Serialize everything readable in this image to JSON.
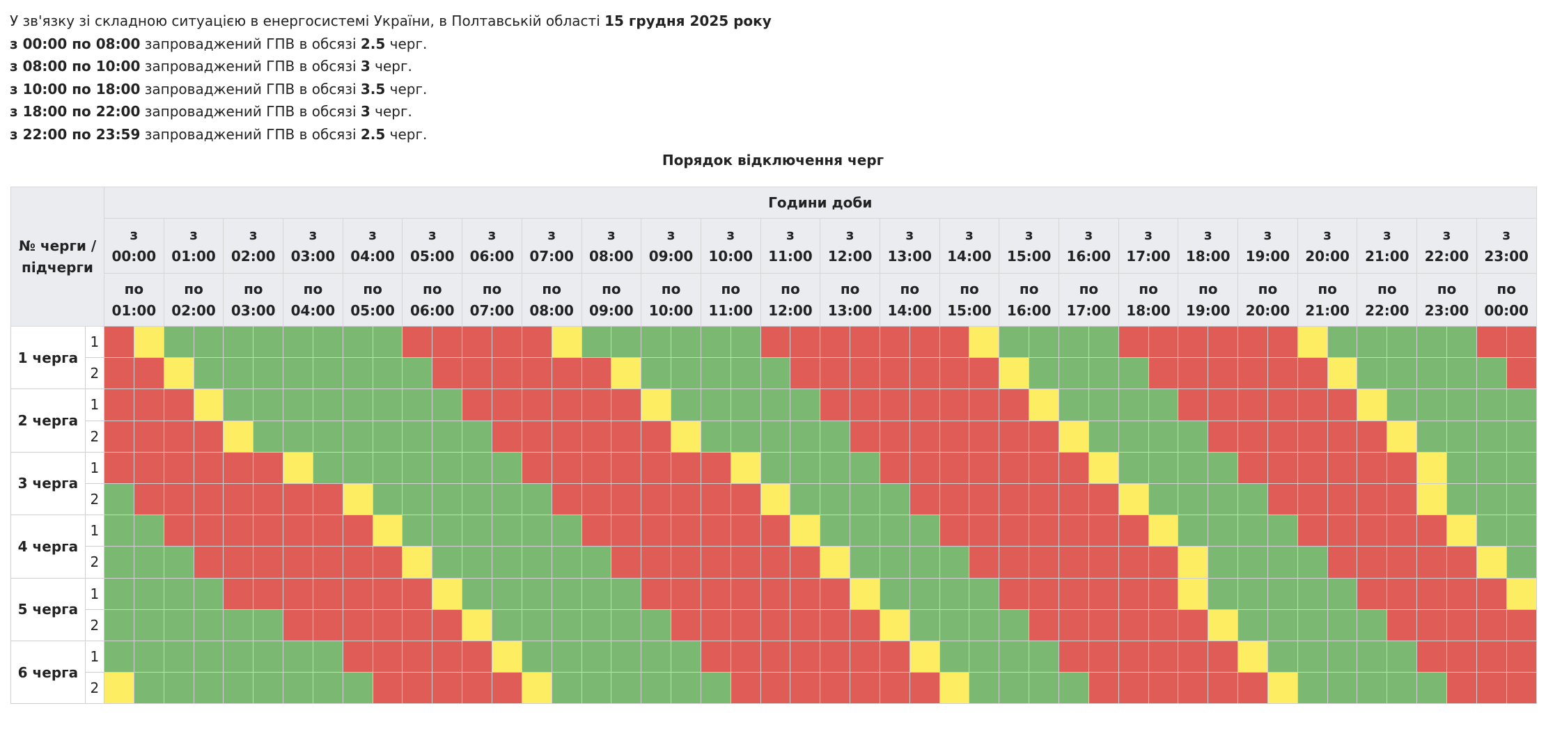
{
  "intro": {
    "text": "У зв'язку зі складною ситуацією в енергосистемі України, в Полтавській області ",
    "date": "15 грудня 2025 року"
  },
  "lines": [
    {
      "range": "з 00:00 по 08:00",
      "mid": " запроваджений ГПВ в обсязі ",
      "amount": "2.5",
      "suffix": " черг."
    },
    {
      "range": "з 08:00 по 10:00",
      "mid": " запроваджений ГПВ в обсязі ",
      "amount": "3",
      "suffix": " черг."
    },
    {
      "range": "з 10:00 по 18:00",
      "mid": " запроваджений ГПВ в обсязі ",
      "amount": "3.5",
      "suffix": " черг."
    },
    {
      "range": "з 18:00 по 22:00",
      "mid": " запроваджений ГПВ в обсязі ",
      "amount": "3",
      "suffix": " черг."
    },
    {
      "range": "з 22:00 по 23:59",
      "mid": " запроваджений ГПВ в обсязі ",
      "amount": "2.5",
      "suffix": " черг."
    }
  ],
  "table": {
    "title": "Порядок відключення черг",
    "corner": "№ черги / підчерги",
    "hours_title": "Години доби",
    "from_word": "з",
    "to_word": "по",
    "hours": [
      {
        "from": "00:00",
        "to": "01:00"
      },
      {
        "from": "01:00",
        "to": "02:00"
      },
      {
        "from": "02:00",
        "to": "03:00"
      },
      {
        "from": "03:00",
        "to": "04:00"
      },
      {
        "from": "04:00",
        "to": "05:00"
      },
      {
        "from": "05:00",
        "to": "06:00"
      },
      {
        "from": "06:00",
        "to": "07:00"
      },
      {
        "from": "07:00",
        "to": "08:00"
      },
      {
        "from": "08:00",
        "to": "09:00"
      },
      {
        "from": "09:00",
        "to": "10:00"
      },
      {
        "from": "10:00",
        "to": "11:00"
      },
      {
        "from": "11:00",
        "to": "12:00"
      },
      {
        "from": "12:00",
        "to": "13:00"
      },
      {
        "from": "13:00",
        "to": "14:00"
      },
      {
        "from": "14:00",
        "to": "15:00"
      },
      {
        "from": "15:00",
        "to": "16:00"
      },
      {
        "from": "16:00",
        "to": "17:00"
      },
      {
        "from": "17:00",
        "to": "18:00"
      },
      {
        "from": "18:00",
        "to": "19:00"
      },
      {
        "from": "19:00",
        "to": "20:00"
      },
      {
        "from": "20:00",
        "to": "21:00"
      },
      {
        "from": "21:00",
        "to": "22:00"
      },
      {
        "from": "22:00",
        "to": "23:00"
      },
      {
        "from": "23:00",
        "to": "00:00"
      }
    ],
    "colors": {
      "R": "#e05d57",
      "G": "#7bb872",
      "Y": "#fced62"
    },
    "queues": [
      {
        "label": "1 черга",
        "subs": [
          {
            "sub": "1",
            "slots": "RYGGGGGGGGRRRRRYGGGGGGRRRRRRRYGGGGRRRRRRYGGGGGRR"
          },
          {
            "sub": "2",
            "slots": "RRYGGGGGGGGRRRRRRYGGGGGRRRRRRRYGGGGRRRRRRYGGGGGR"
          }
        ]
      },
      {
        "label": "2 черга",
        "subs": [
          {
            "sub": "1",
            "slots": "RRRYGGGGGGGGRRRRRRYGGGGGRRRRRRRYGGGGRRRRRRYGGGGG"
          },
          {
            "sub": "2",
            "slots": "RRRRYGGGGGGGGRRRRRRYGGGGGRRRRRRRYGGGGRRRRRRYGGGG"
          }
        ]
      },
      {
        "label": "3 черга",
        "subs": [
          {
            "sub": "1",
            "slots": "RRRRRRYGGGGGGGRRRRRRRYGGGGRRRRRRRYGGGGRRRRRRYGGG"
          },
          {
            "sub": "2",
            "slots": "GRRRRRRRYGGGGGGRRRRRRRYGGGGRRRRRRRYGGGGRRRRRYGGG"
          }
        ]
      },
      {
        "label": "4 черга",
        "subs": [
          {
            "sub": "1",
            "slots": "GGRRRRRRRYGGGGGGRRRRRRRYGGGGRRRRRRRYGGGGRRRRRYGG"
          },
          {
            "sub": "2",
            "slots": "GGGRRRRRRRYGGGGGGRRRRRRRYGGGGRRRRRRRYGGGGRRRRRYG"
          }
        ]
      },
      {
        "label": "5 черга",
        "subs": [
          {
            "sub": "1",
            "slots": "GGGGRRRRRRRYGGGGGGRRRRRRRYGGGGRRRRRRYGGGGGRRRRRY"
          },
          {
            "sub": "2",
            "slots": "GGGGGGRRRRRRYGGGGGGRRRRRRRYGGGGRRRRRRYGGGGGRRRRR"
          }
        ]
      },
      {
        "label": "6 черга",
        "subs": [
          {
            "sub": "1",
            "slots": "GGGGGGGGRRRRRYGGGGGGRRRRRRRYGGGGRRRRRRYGGGGGRRRR"
          },
          {
            "sub": "2",
            "slots": "YGGGGGGGGRRRRRYGGGGGGRRRRRRRYGGGGRRRRRRYGGGGGRRR"
          }
        ]
      }
    ]
  }
}
